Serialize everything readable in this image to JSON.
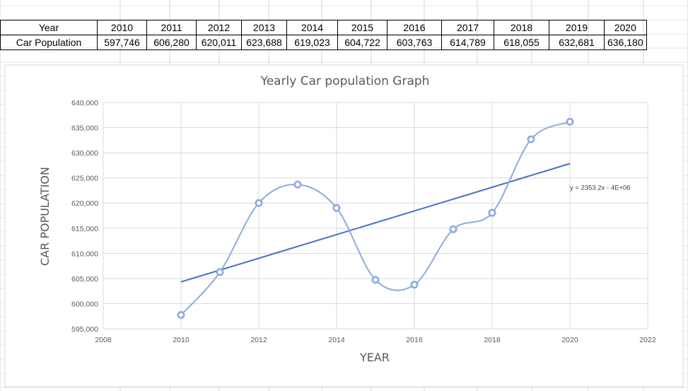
{
  "table": {
    "row_labels": [
      "Year",
      "Car Population"
    ],
    "years": [
      "2010",
      "2011",
      "2012",
      "2013",
      "2014",
      "2015",
      "2016",
      "2017",
      "2018",
      "2019",
      "2020"
    ],
    "populations": [
      "597,746",
      "606,280",
      "620,011",
      "623,688",
      "619,023",
      "604,722",
      "603,763",
      "614,789",
      "618,055",
      "632,681",
      "636,180"
    ]
  },
  "chart_data": {
    "type": "scatter",
    "title": "Yearly Car population Graph",
    "xlabel": "YEAR",
    "ylabel": "CAR POPULATION",
    "xlim": [
      2008,
      2022
    ],
    "ylim": [
      595000,
      640000
    ],
    "x_ticks": [
      "2008",
      "2010",
      "2012",
      "2014",
      "2016",
      "2018",
      "2020",
      "2022"
    ],
    "y_ticks": [
      "595,000",
      "600,000",
      "605,000",
      "610,000",
      "615,000",
      "620,000",
      "625,000",
      "630,000",
      "635,000",
      "640,000"
    ],
    "grid": true,
    "series": [
      {
        "x": [
          2010,
          2011,
          2012,
          2013,
          2014,
          2015,
          2016,
          2017,
          2018,
          2019,
          2020
        ],
        "y": [
          597746,
          606280,
          620011,
          623688,
          619023,
          604722,
          603763,
          614789,
          618055,
          632681,
          636180
        ],
        "color": "#8faadc",
        "smooth_line": true
      }
    ],
    "trendline": {
      "type": "linear",
      "equation": "y = 2353.2x - 4E+06",
      "color": "#4472c4",
      "x_range": [
        2010,
        2020
      ]
    }
  }
}
